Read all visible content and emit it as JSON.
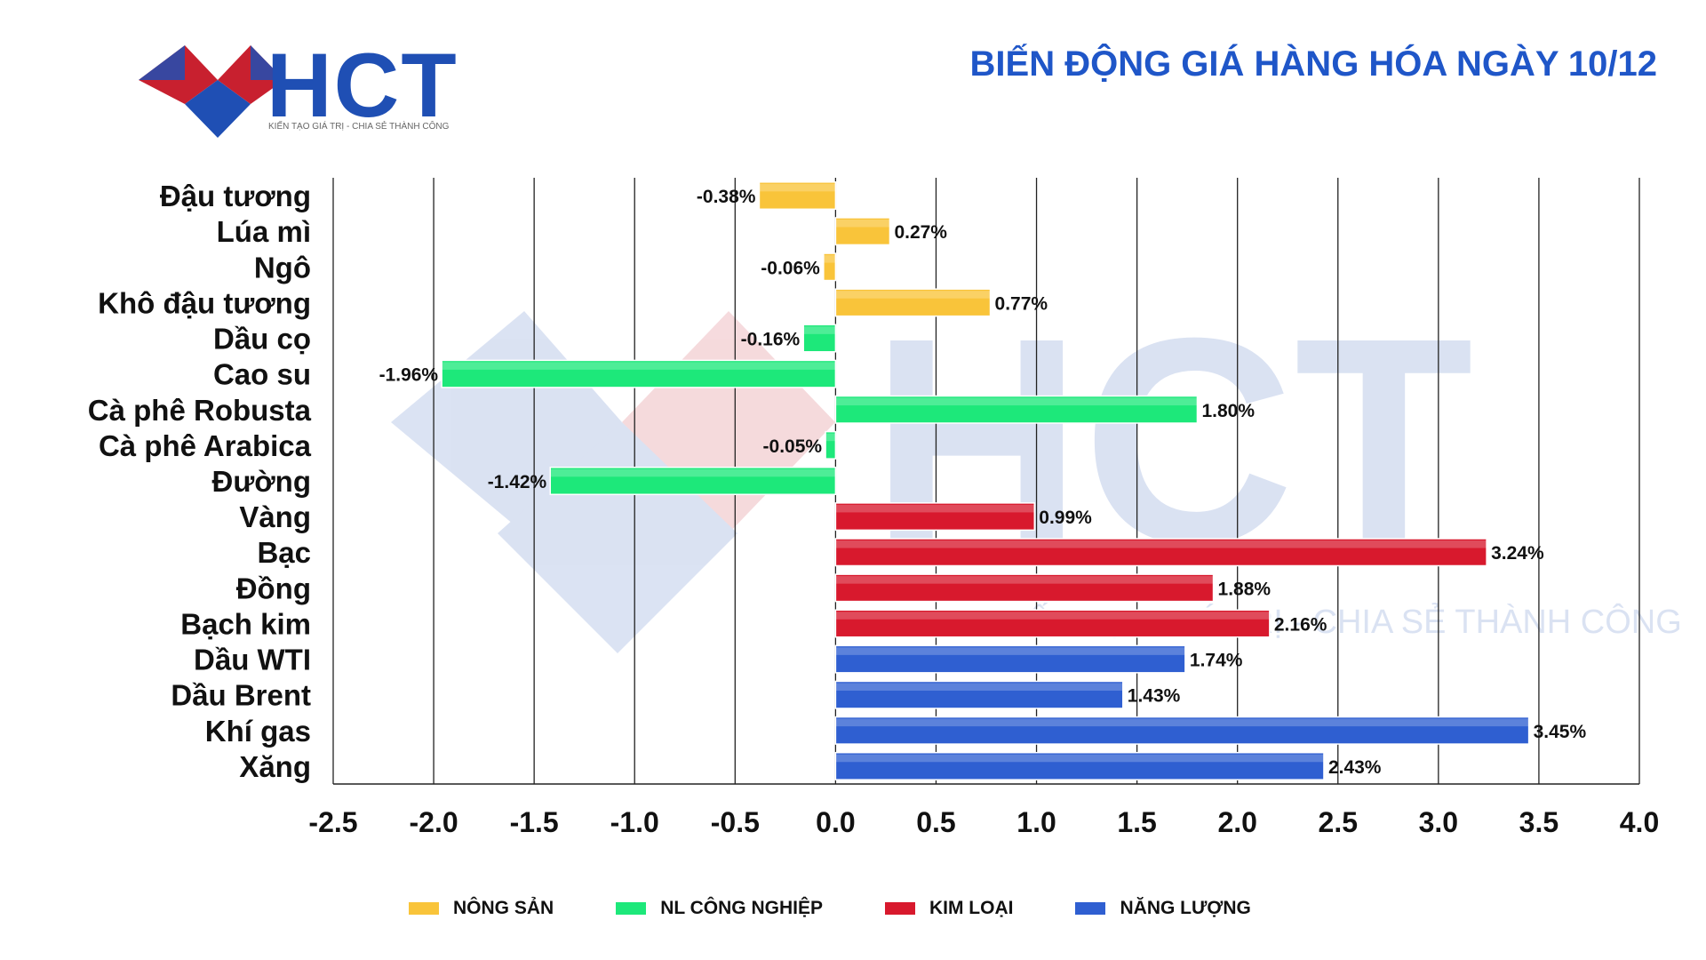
{
  "brand": {
    "name": "HCT",
    "tagline": "KIẾN TẠO GIÁ TRỊ - CHIA SẺ THÀNH CÔNG"
  },
  "headline": "BIẾN ĐỘNG GIÁ HÀNG HÓA NGÀY 10/12",
  "colors": {
    "nong_san": "#f9c43a",
    "nl_cong_nghiep": "#1de87a",
    "kim_loai": "#d8192d",
    "nang_luong": "#2f5fd1",
    "brand_blue": "#1f4fb4",
    "brand_red": "#c8202f"
  },
  "chart_data": {
    "type": "bar",
    "orientation": "horizontal",
    "title": "BIẾN ĐỘNG GIÁ HÀNG HÓA NGÀY 10/12",
    "xlabel": "",
    "ylabel": "",
    "xlim": [
      -2.5,
      4.0
    ],
    "xticks": [
      -2.5,
      -2.0,
      -1.5,
      -1.0,
      -0.5,
      0.0,
      0.5,
      1.0,
      1.5,
      2.0,
      2.5,
      3.0,
      3.5,
      4.0
    ],
    "xtick_labels": [
      "-2.5",
      "-2.0",
      "-1.5",
      "-1.0",
      "-0.5",
      "0.0",
      "0.5",
      "1.0",
      "1.5",
      "2.0",
      "2.5",
      "3.0",
      "3.5",
      "4.0"
    ],
    "grid": "vertical",
    "legend_position": "bottom",
    "legend": [
      {
        "name": "NÔNG SẢN",
        "color": "#f9c43a"
      },
      {
        "name": "NL CÔNG NGHIỆP",
        "color": "#1de87a"
      },
      {
        "name": "KIM LOẠI",
        "color": "#d8192d"
      },
      {
        "name": "NĂNG LƯỢNG",
        "color": "#2f5fd1"
      }
    ],
    "bars": [
      {
        "category": "Đậu tương",
        "value": -0.38,
        "label": "-0.38%",
        "group": "NÔNG SẢN",
        "color": "#f9c43a"
      },
      {
        "category": "Lúa mì",
        "value": 0.27,
        "label": "0.27%",
        "group": "NÔNG SẢN",
        "color": "#f9c43a"
      },
      {
        "category": "Ngô",
        "value": -0.06,
        "label": "-0.06%",
        "group": "NÔNG SẢN",
        "color": "#f9c43a"
      },
      {
        "category": "Khô đậu tương",
        "value": 0.77,
        "label": "0.77%",
        "group": "NÔNG SẢN",
        "color": "#f9c43a"
      },
      {
        "category": "Dầu cọ",
        "value": -0.16,
        "label": "-0.16%",
        "group": "NL CÔNG NGHIỆP",
        "color": "#1de87a"
      },
      {
        "category": "Cao su",
        "value": -1.96,
        "label": "-1.96%",
        "group": "NL CÔNG NGHIỆP",
        "color": "#1de87a"
      },
      {
        "category": "Cà phê Robusta",
        "value": 1.8,
        "label": "1.80%",
        "group": "NL CÔNG NGHIỆP",
        "color": "#1de87a"
      },
      {
        "category": "Cà phê Arabica",
        "value": -0.05,
        "label": "-0.05%",
        "group": "NL CÔNG NGHIỆP",
        "color": "#1de87a"
      },
      {
        "category": "Đường",
        "value": -1.42,
        "label": "-1.42%",
        "group": "NL CÔNG NGHIỆP",
        "color": "#1de87a"
      },
      {
        "category": "Vàng",
        "value": 0.99,
        "label": "0.99%",
        "group": "KIM LOẠI",
        "color": "#d8192d"
      },
      {
        "category": "Bạc",
        "value": 3.24,
        "label": "3.24%",
        "group": "KIM LOẠI",
        "color": "#d8192d"
      },
      {
        "category": "Đồng",
        "value": 1.88,
        "label": "1.88%",
        "group": "KIM LOẠI",
        "color": "#d8192d"
      },
      {
        "category": "Bạch kim",
        "value": 2.16,
        "label": "2.16%",
        "group": "KIM LOẠI",
        "color": "#d8192d"
      },
      {
        "category": "Dầu WTI",
        "value": 1.74,
        "label": "1.74%",
        "group": "NĂNG LƯỢNG",
        "color": "#2f5fd1"
      },
      {
        "category": "Dầu Brent",
        "value": 1.43,
        "label": "1.43%",
        "group": "NĂNG LƯỢNG",
        "color": "#2f5fd1"
      },
      {
        "category": "Khí gas",
        "value": 3.45,
        "label": "3.45%",
        "group": "NĂNG LƯỢNG",
        "color": "#2f5fd1"
      },
      {
        "category": "Xăng",
        "value": 2.43,
        "label": "2.43%",
        "group": "NĂNG LƯỢNG",
        "color": "#2f5fd1"
      }
    ]
  }
}
